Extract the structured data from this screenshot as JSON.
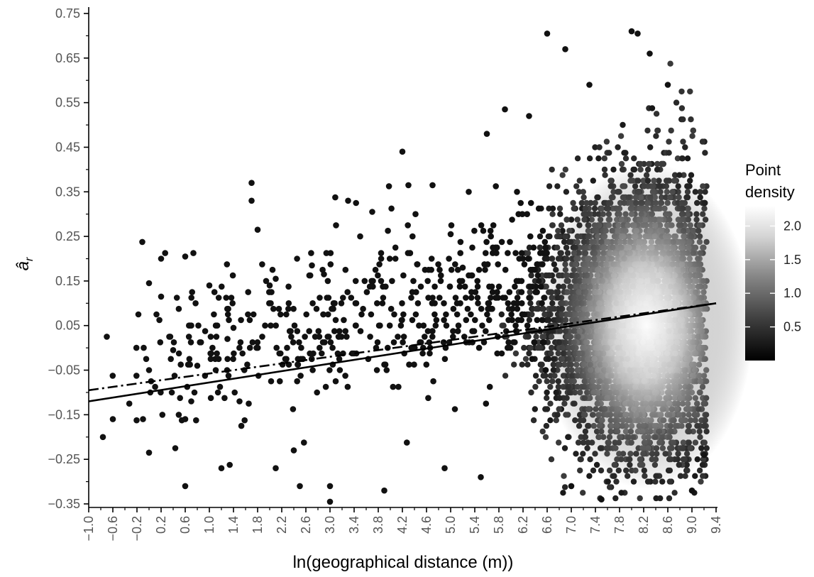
{
  "chart_data": {
    "type": "scatter",
    "title": "",
    "xlabel": "ln(geographical distance (m))",
    "ylabel": "â",
    "ylabel_subscript": "r",
    "xlim": [
      -1.0,
      9.4
    ],
    "ylim": [
      -0.36,
      0.76
    ],
    "x_ticks": [
      "−1.0",
      "−0.6",
      "−0.2",
      "0.2",
      "0.6",
      "1.0",
      "1.4",
      "1.8",
      "2.2",
      "2.6",
      "3.0",
      "3.4",
      "3.8",
      "4.2",
      "4.6",
      "5.0",
      "5.4",
      "5.8",
      "6.2",
      "6.6",
      "7.0",
      "7.4",
      "7.8",
      "8.2",
      "8.6",
      "9.0",
      "9.4"
    ],
    "x_tick_values": [
      -1.0,
      -0.6,
      -0.2,
      0.2,
      0.6,
      1.0,
      1.4,
      1.8,
      2.2,
      2.6,
      3.0,
      3.4,
      3.8,
      4.2,
      4.6,
      5.0,
      5.4,
      5.8,
      6.2,
      6.6,
      7.0,
      7.4,
      7.8,
      8.2,
      8.6,
      9.0,
      9.4
    ],
    "y_ticks": [
      "0.75",
      "0.65",
      "0.55",
      "0.45",
      "0.35",
      "0.25",
      "0.15",
      "0.05",
      "−0.05",
      "−0.15",
      "−0.25",
      "−0.35"
    ],
    "y_tick_values": [
      0.75,
      0.65,
      0.55,
      0.45,
      0.35,
      0.25,
      0.15,
      0.05,
      -0.05,
      -0.15,
      -0.25,
      -0.35
    ],
    "grid": false,
    "legend": {
      "title_line1": "Point",
      "title_line2": "density",
      "placement": "right",
      "labels": [
        "2.0",
        "1.5",
        "1.0",
        "0.5"
      ],
      "label_values": [
        2.0,
        1.5,
        1.0,
        0.5
      ],
      "range": [
        0,
        2.3
      ],
      "colors": [
        "#000000",
        "#ffffff"
      ]
    },
    "fit_lines": [
      {
        "style": "solid",
        "x": [
          -1.0,
          9.4
        ],
        "y": [
          -0.12,
          0.1
        ]
      },
      {
        "style": "dashdot",
        "x": [
          -1.0,
          9.4
        ],
        "y": [
          -0.095,
          0.1
        ]
      }
    ],
    "sample_points": [
      [
        -0.7,
        0.025
      ],
      [
        -0.6,
        -0.16
      ],
      [
        -0.1,
        -0.16
      ],
      [
        0.0,
        0.145
      ],
      [
        0.0,
        -0.05
      ],
      [
        0.2,
        0.2
      ],
      [
        0.2,
        0.115
      ],
      [
        0.0,
        -0.235
      ],
      [
        0.4,
        -0.005
      ],
      [
        0.6,
        0.205
      ],
      [
        0.6,
        -0.16
      ],
      [
        0.6,
        -0.31
      ],
      [
        0.7,
        0.05
      ],
      [
        0.7,
        -0.12
      ],
      [
        0.8,
        -0.04
      ],
      [
        1.0,
        0.14
      ],
      [
        1.2,
        -0.27
      ],
      [
        1.3,
        0.02
      ],
      [
        1.4,
        0.045
      ],
      [
        1.5,
        -0.12
      ],
      [
        1.7,
        0.37
      ],
      [
        1.7,
        0.33
      ],
      [
        1.8,
        0.265
      ],
      [
        2.0,
        0.14
      ],
      [
        2.1,
        0.155
      ],
      [
        2.1,
        -0.27
      ],
      [
        2.4,
        -0.23
      ],
      [
        2.5,
        -0.31
      ],
      [
        2.7,
        0.185
      ],
      [
        2.9,
        0.165
      ],
      [
        3.0,
        -0.31
      ],
      [
        3.0,
        -0.345
      ],
      [
        3.1,
        0.275
      ],
      [
        3.3,
        0.33
      ],
      [
        3.5,
        0.25
      ],
      [
        3.7,
        0.305
      ],
      [
        3.9,
        -0.32
      ],
      [
        4.2,
        0.44
      ],
      [
        4.3,
        0.365
      ],
      [
        4.7,
        0.365
      ],
      [
        4.9,
        -0.27
      ],
      [
        5.0,
        0.255
      ],
      [
        5.2,
        0.18
      ],
      [
        5.3,
        0.35
      ],
      [
        5.5,
        -0.29
      ],
      [
        5.6,
        0.48
      ],
      [
        5.9,
        0.535
      ],
      [
        6.1,
        0.35
      ],
      [
        6.3,
        0.52
      ],
      [
        6.6,
        0.705
      ],
      [
        6.9,
        0.67
      ],
      [
        7.0,
        -0.31
      ],
      [
        7.3,
        0.59
      ],
      [
        7.5,
        -0.34
      ],
      [
        8.0,
        0.71
      ],
      [
        8.1,
        0.705
      ],
      [
        8.3,
        0.66
      ],
      [
        8.6,
        0.59
      ],
      [
        9.0,
        -0.32
      ],
      [
        9.2,
        -0.24
      ]
    ]
  }
}
